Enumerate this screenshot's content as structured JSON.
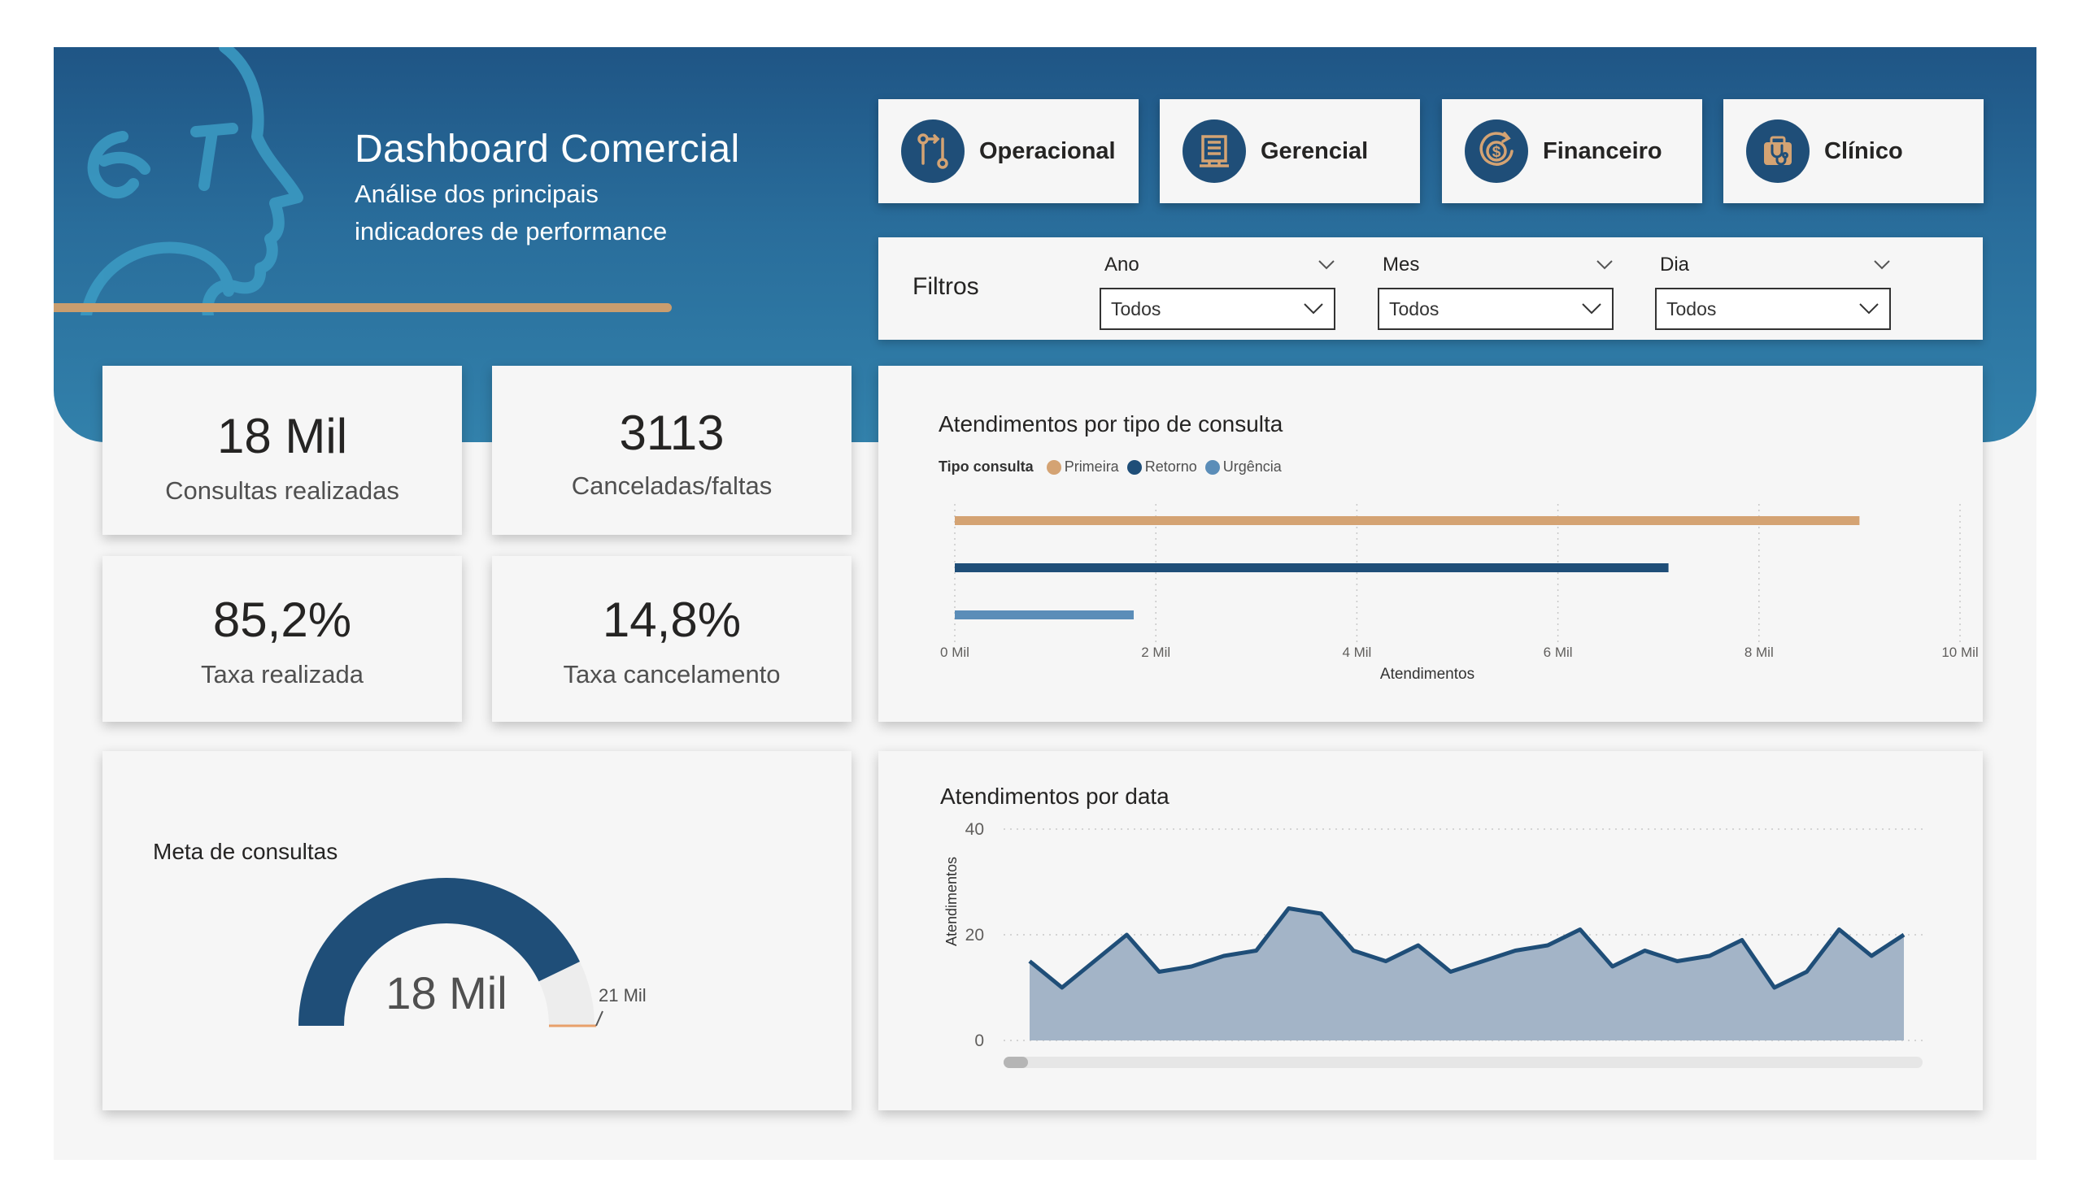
{
  "header": {
    "title": "Dashboard Comercial",
    "subtitle_line1": "Análise dos principais",
    "subtitle_line2": "indicadores de performance",
    "accent_color": "#c99d6e",
    "background_color": "#296d9b"
  },
  "nav": [
    {
      "label": "Operacional",
      "icon": "route-icon"
    },
    {
      "label": "Gerencial",
      "icon": "building-icon"
    },
    {
      "label": "Financeiro",
      "icon": "dollar-cycle-icon"
    },
    {
      "label": "Clínico",
      "icon": "stethoscope-icon"
    }
  ],
  "filters": {
    "title": "Filtros",
    "slicers": [
      {
        "label": "Ano",
        "value": "Todos"
      },
      {
        "label": "Mes",
        "value": "Todos"
      },
      {
        "label": "Dia",
        "value": "Todos"
      }
    ]
  },
  "kpis": [
    {
      "value": "18 Mil",
      "label": "Consultas realizadas"
    },
    {
      "value": "3113",
      "label": "Canceladas/faltas"
    },
    {
      "value": "85,2%",
      "label": "Taxa realizada"
    },
    {
      "value": "14,8%",
      "label": "Taxa cancelamento"
    }
  ],
  "gauge": {
    "title": "Meta de consultas",
    "value_label": "18 Mil",
    "target_label": "21 Mil",
    "value": 18000,
    "max": 21000,
    "colors": {
      "fill": "#1f4e78",
      "track": "#ededed",
      "target": "#e8a06a"
    }
  },
  "chart_data": [
    {
      "type": "bar",
      "orientation": "horizontal",
      "title": "Atendimentos por tipo de consulta",
      "legend_title": "Tipo consulta",
      "categories": [
        "Primeira",
        "Retorno",
        "Urgência"
      ],
      "values": [
        9000,
        7100,
        1780
      ],
      "colors": [
        "#d4a373",
        "#1f4e78",
        "#5b8db8"
      ],
      "xlabel": "Atendimentos",
      "xlim": [
        0,
        10000
      ],
      "ticks": [
        "0 Mil",
        "2 Mil",
        "4 Mil",
        "6 Mil",
        "8 Mil",
        "10 Mil"
      ],
      "grid": true
    },
    {
      "type": "area",
      "title": "Atendimentos por data",
      "ylabel": "Atendimentos",
      "ylim": [
        0,
        40
      ],
      "yticks": [
        "0",
        "20",
        "40"
      ],
      "values": [
        15,
        10,
        15,
        20,
        13,
        14,
        16,
        17,
        25,
        24,
        17,
        15,
        18,
        13,
        15,
        17,
        18,
        21,
        14,
        17,
        15,
        16,
        19,
        10,
        13,
        21,
        16,
        20
      ],
      "line_color": "#1f4e78",
      "fill_color": "#a3b4c7",
      "grid": true
    }
  ]
}
